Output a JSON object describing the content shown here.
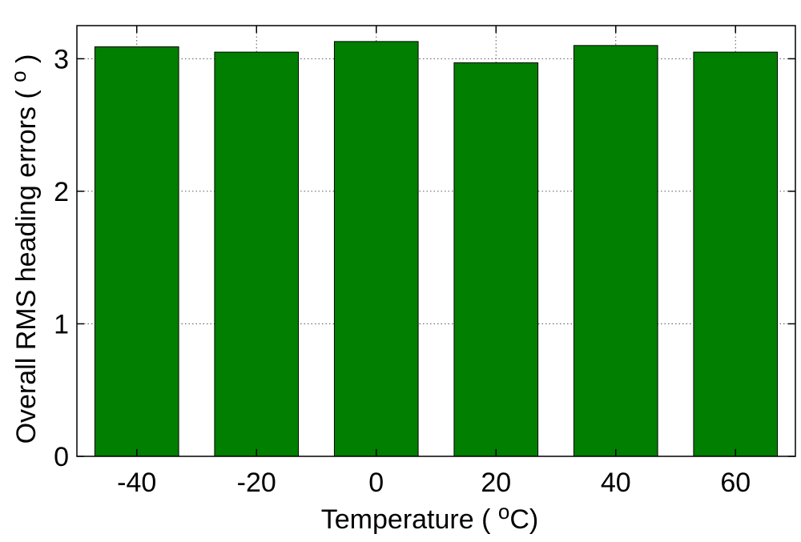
{
  "chart_data": {
    "type": "bar",
    "categories": [
      "-40",
      "-20",
      "0",
      "20",
      "40",
      "60"
    ],
    "values": [
      3.09,
      3.05,
      3.13,
      2.97,
      3.1,
      3.05
    ],
    "title": "",
    "xlabel": {
      "prefix": "Temperature ( ",
      "superscript": "o",
      "suffix": "C)"
    },
    "ylabel": {
      "prefix": "Overall RMS heading errors ( ",
      "superscript": "o",
      "suffix": " )"
    },
    "ylim": [
      0,
      3.25
    ],
    "yticks": [
      "0",
      "1",
      "2",
      "3"
    ],
    "grid": true,
    "bar_color": "#007f00"
  }
}
